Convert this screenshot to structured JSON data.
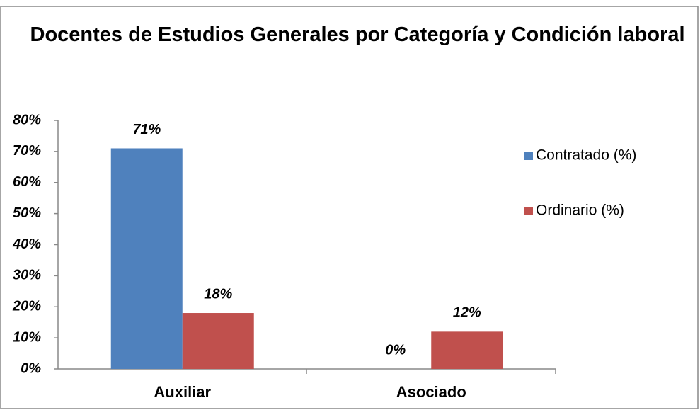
{
  "chart_data": {
    "type": "bar",
    "title": "Docentes de Estudios Generales por Categoría y Condición laboral",
    "categories": [
      "Auxiliar",
      "Asociado"
    ],
    "series": [
      {
        "name": "Contratado (%)",
        "color": "#4f81bd",
        "values": [
          71,
          0
        ],
        "value_labels": [
          "71%",
          "0%"
        ]
      },
      {
        "name": "Ordinario (%)",
        "color": "#c0504d",
        "values": [
          18,
          12
        ],
        "value_labels": [
          "18%",
          "12%"
        ]
      }
    ],
    "ylim": [
      0,
      80
    ],
    "yticks": [
      {
        "value": 0,
        "label": "0%"
      },
      {
        "value": 10,
        "label": "10%"
      },
      {
        "value": 20,
        "label": "20%"
      },
      {
        "value": 30,
        "label": "30%"
      },
      {
        "value": 40,
        "label": "40%"
      },
      {
        "value": 50,
        "label": "50%"
      },
      {
        "value": 60,
        "label": "60%"
      },
      {
        "value": 70,
        "label": "70%"
      },
      {
        "value": 80,
        "label": "80%"
      }
    ],
    "legend": "right"
  }
}
